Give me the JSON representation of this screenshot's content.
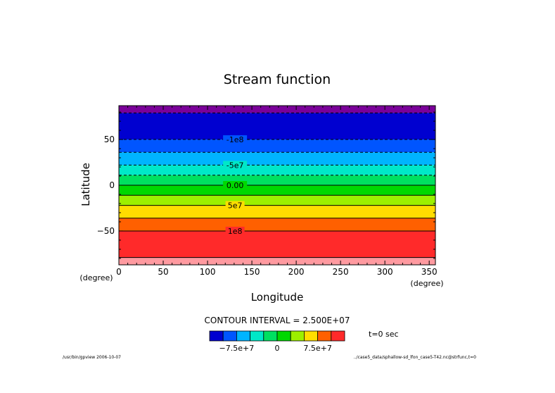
{
  "chart_data": {
    "type": "contour",
    "title": "Stream function",
    "xlabel": "Longitude",
    "ylabel": "Latitude",
    "x_unit": "(degree)",
    "y_unit": "(degree)",
    "xlim": [
      0,
      357
    ],
    "ylim": [
      -87,
      87
    ],
    "xticks": [
      {
        "v": 0,
        "label": "0"
      },
      {
        "v": 50,
        "label": "50"
      },
      {
        "v": 100,
        "label": "100"
      },
      {
        "v": 150,
        "label": "150"
      },
      {
        "v": 200,
        "label": "200"
      },
      {
        "v": 250,
        "label": "250"
      },
      {
        "v": 300,
        "label": "300"
      },
      {
        "v": 350,
        "label": "350"
      }
    ],
    "yticks": [
      {
        "v": 50,
        "label": "50"
      },
      {
        "v": 0,
        "label": "0"
      },
      {
        "v": -50,
        "label": "−50"
      }
    ],
    "bands": [
      {
        "from": 79,
        "to": 87,
        "color": "#7a0099"
      },
      {
        "from": 50,
        "to": 79,
        "color": "#0000d0"
      },
      {
        "from": 36,
        "to": 50,
        "color": "#0055ff"
      },
      {
        "from": 22,
        "to": 36,
        "color": "#00b4ff"
      },
      {
        "from": 11,
        "to": 22,
        "color": "#00e8c8"
      },
      {
        "from": 0,
        "to": 11,
        "color": "#00e060"
      },
      {
        "from": -11,
        "to": 0,
        "color": "#00d800"
      },
      {
        "from": -22,
        "to": -11,
        "color": "#9cf000"
      },
      {
        "from": -36,
        "to": -22,
        "color": "#ffdd00"
      },
      {
        "from": -50,
        "to": -36,
        "color": "#ff6000"
      },
      {
        "from": -79,
        "to": -50,
        "color": "#ff2a2a"
      },
      {
        "from": -87,
        "to": -79,
        "color": "#ff9aa0"
      }
    ],
    "contours": [
      {
        "lat": 79,
        "dashed": true,
        "label": ""
      },
      {
        "lat": 50,
        "dashed": true,
        "label": "-1e8"
      },
      {
        "lat": 36,
        "dashed": true,
        "label": ""
      },
      {
        "lat": 22,
        "dashed": true,
        "label": "-5e7"
      },
      {
        "lat": 11,
        "dashed": true,
        "label": ""
      },
      {
        "lat": 0,
        "dashed": false,
        "label": "0.00"
      },
      {
        "lat": -11,
        "dashed": false,
        "label": ""
      },
      {
        "lat": -22,
        "dashed": false,
        "label": "5e7"
      },
      {
        "lat": -36,
        "dashed": false,
        "label": ""
      },
      {
        "lat": -50,
        "dashed": false,
        "label": "1e8"
      },
      {
        "lat": -79,
        "dashed": false,
        "label": ""
      }
    ],
    "contour_label_lon": 131,
    "contour_interval_text": "CONTOUR INTERVAL = 2.500E+07",
    "colorbar": {
      "colors": [
        "#0000d0",
        "#0055ff",
        "#00b4ff",
        "#00e8c8",
        "#00e060",
        "#00d800",
        "#9cf000",
        "#ffdd00",
        "#ff6000",
        "#ff2a2a"
      ],
      "labels": [
        "−7.5e+7",
        "0",
        "7.5e+7"
      ]
    },
    "time_text": "t=0 sec",
    "footer_left": "/usr/bin/gpview  2006-10-07",
    "footer_right": "../case5_data/sphallow-sd_lfon_case5-T42.nc@strfunc,t=0"
  }
}
